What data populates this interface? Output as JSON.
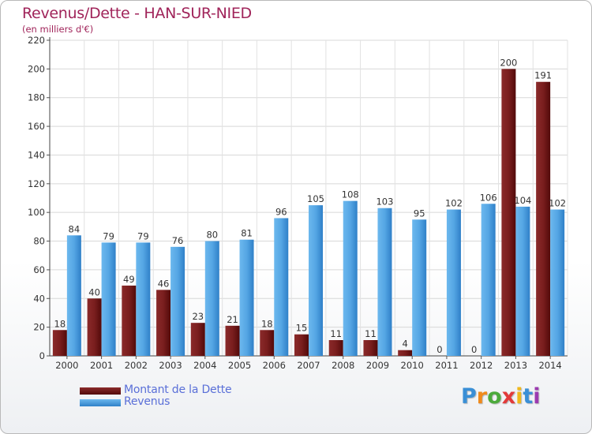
{
  "header": {
    "title": "Revenus/Dette - HAN-SUR-NIED",
    "subtitle": "(en milliers d'€)"
  },
  "legend": {
    "debt_label": "Montant de la Dette",
    "revenue_label": "Revenus"
  },
  "logo": {
    "letters": [
      "P",
      "r",
      "o",
      "x",
      "i",
      "t",
      "i"
    ],
    "colors": [
      "#3a8fd6",
      "#f08a1c",
      "#4caa3c",
      "#e23a3a",
      "#f0b81c",
      "#3a8fd6",
      "#9b3ab0"
    ]
  },
  "colors": {
    "debt": "#7a1f1f",
    "debt_dark": "#5a0c0c",
    "revenue": "#5aaae6",
    "revenue_dark": "#2a78c0"
  },
  "chart_data": {
    "type": "bar",
    "title": "Revenus/Dette - HAN-SUR-NIED",
    "ylabel": "(en milliers d'€)",
    "xlabel": "",
    "ylim": [
      0,
      220
    ],
    "yticks": [
      0,
      20,
      40,
      60,
      80,
      100,
      120,
      140,
      160,
      180,
      200,
      220
    ],
    "grid": true,
    "legend_position": "bottom-left",
    "categories": [
      "2000",
      "2001",
      "2002",
      "2003",
      "2004",
      "2005",
      "2006",
      "2007",
      "2008",
      "2009",
      "2010",
      "2011",
      "2012",
      "2013",
      "2014"
    ],
    "series": [
      {
        "name": "Montant de la Dette",
        "values": [
          18,
          40,
          49,
          46,
          23,
          21,
          18,
          15,
          11,
          11,
          4,
          0,
          0,
          200,
          191
        ]
      },
      {
        "name": "Revenus",
        "values": [
          84,
          79,
          79,
          76,
          80,
          81,
          96,
          105,
          108,
          103,
          95,
          102,
          106,
          104,
          102
        ]
      }
    ]
  }
}
